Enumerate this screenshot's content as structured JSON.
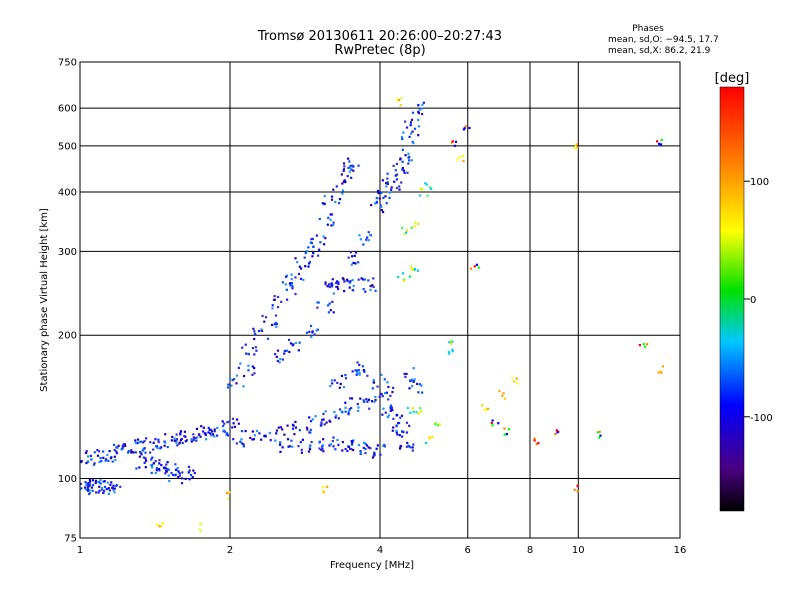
{
  "chart_data": {
    "type": "scatter",
    "title": "Tromsø 20130611 20:26:00–20:27:43",
    "subtitle": "RwPretec (8p)",
    "xlabel": "Frequency [MHz]",
    "ylabel": "Stationary phase Virtual Height [km]",
    "x_scale": "log",
    "y_scale": "log",
    "xlim": [
      1,
      16
    ],
    "ylim": [
      75,
      750
    ],
    "x_ticks": [
      1,
      2,
      4,
      6,
      8,
      10,
      16
    ],
    "y_ticks": [
      75,
      100,
      200,
      300,
      400,
      500,
      600,
      750
    ],
    "grid": true,
    "stats": {
      "title": "Phases",
      "line_o": "mean, sd,O: −94.5, 17.7",
      "line_x": "mean, sd,X:  86.2, 21.9"
    },
    "colorbar": {
      "label": "[deg]",
      "range": [
        -180,
        180
      ],
      "ticks": [
        100,
        0,
        -100
      ]
    },
    "series": [
      {
        "points": [
          [
            1.02,
            97
          ],
          [
            1.04,
            96
          ],
          [
            1.06,
            97
          ],
          [
            1.08,
            96
          ],
          [
            1.1,
            96
          ],
          [
            1.13,
            97
          ],
          [
            1.16,
            96
          ],
          [
            1.03,
            110
          ],
          [
            1.06,
            111
          ],
          [
            1.1,
            111
          ],
          [
            1.14,
            112
          ],
          [
            1.18,
            114
          ],
          [
            1.22,
            115
          ],
          [
            1.28,
            116
          ],
          [
            1.34,
            117
          ],
          [
            1.4,
            118
          ],
          [
            1.46,
            119
          ],
          [
            1.52,
            120
          ],
          [
            1.58,
            121
          ],
          [
            1.64,
            122
          ],
          [
            1.7,
            124
          ],
          [
            1.76,
            125
          ],
          [
            1.84,
            126
          ],
          [
            1.92,
            128
          ],
          [
            2.0,
            130
          ],
          [
            1.35,
            108
          ],
          [
            1.4,
            107
          ],
          [
            1.45,
            106
          ],
          [
            1.5,
            104
          ],
          [
            1.55,
            102
          ],
          [
            1.6,
            101
          ],
          [
            1.65,
            103
          ],
          [
            2.05,
            120
          ],
          [
            2.2,
            122
          ],
          [
            2.4,
            124
          ],
          [
            2.6,
            126
          ],
          [
            2.8,
            128
          ],
          [
            3.0,
            132
          ],
          [
            3.2,
            136
          ],
          [
            3.4,
            140
          ],
          [
            3.6,
            143
          ],
          [
            3.8,
            145
          ],
          [
            2.6,
            117
          ],
          [
            2.8,
            117
          ],
          [
            3.0,
            118
          ],
          [
            3.2,
            118
          ],
          [
            3.4,
            117
          ],
          [
            3.6,
            116
          ],
          [
            3.8,
            115
          ],
          [
            3.95,
            114
          ],
          [
            2.05,
            160
          ],
          [
            2.15,
            170
          ],
          [
            2.2,
            185
          ],
          [
            2.3,
            200
          ],
          [
            2.4,
            215
          ],
          [
            2.5,
            235
          ],
          [
            2.6,
            250
          ],
          [
            2.7,
            265
          ],
          [
            2.8,
            285
          ],
          [
            2.9,
            300
          ],
          [
            3.0,
            320
          ],
          [
            3.1,
            350
          ],
          [
            3.2,
            380
          ],
          [
            3.3,
            410
          ],
          [
            3.4,
            440
          ],
          [
            3.5,
            460
          ],
          [
            2.5,
            180
          ],
          [
            2.7,
            190
          ],
          [
            2.9,
            205
          ],
          [
            3.1,
            230
          ],
          [
            3.3,
            260
          ],
          [
            3.5,
            290
          ],
          [
            3.7,
            320
          ],
          [
            3.2,
            250
          ],
          [
            3.4,
            255
          ],
          [
            3.6,
            255
          ],
          [
            3.8,
            255
          ],
          [
            3.3,
            160
          ],
          [
            3.5,
            165
          ],
          [
            3.7,
            170
          ],
          [
            4.0,
            370
          ],
          [
            4.1,
            390
          ],
          [
            4.2,
            410
          ],
          [
            4.3,
            430
          ],
          [
            4.4,
            450
          ],
          [
            4.5,
            480
          ],
          [
            4.6,
            520
          ],
          [
            4.65,
            560
          ],
          [
            4.7,
            600
          ],
          [
            4.0,
            160
          ],
          [
            4.1,
            150
          ],
          [
            4.2,
            140
          ],
          [
            4.3,
            135
          ],
          [
            4.4,
            128
          ],
          [
            4.5,
            122
          ],
          [
            4.55,
            118
          ],
          [
            4.7,
            155
          ],
          [
            4.6,
            165
          ]
        ]
      },
      {
        "points": [
          [
            4.4,
            265
          ],
          [
            4.6,
            270
          ],
          [
            4.7,
            275
          ],
          [
            4.5,
            330
          ],
          [
            4.7,
            340
          ],
          [
            4.9,
            400
          ],
          [
            5.0,
            410
          ],
          [
            4.6,
            140
          ],
          [
            4.8,
            138
          ],
          [
            5.2,
            130
          ],
          [
            5.5,
            185
          ],
          [
            5.6,
            195
          ],
          [
            5.0,
            120
          ]
        ]
      },
      {
        "points": [
          [
            2.0,
            92
          ],
          [
            3.1,
            95
          ],
          [
            1.45,
            80
          ],
          [
            1.75,
            79
          ],
          [
            6.5,
            140
          ],
          [
            7.0,
            150
          ],
          [
            7.5,
            160
          ],
          [
            5.8,
            470
          ],
          [
            14.6,
            170
          ],
          [
            10.0,
            500
          ],
          [
            4.4,
            620
          ]
        ]
      },
      {
        "points": [
          [
            6.2,
            280
          ],
          [
            6.8,
            130
          ],
          [
            7.2,
            125
          ],
          [
            8.2,
            120
          ],
          [
            9.0,
            125
          ],
          [
            10.0,
            95
          ],
          [
            11.0,
            124
          ],
          [
            13.5,
            190
          ],
          [
            14.5,
            510
          ],
          [
            5.6,
            505
          ],
          [
            6.0,
            545
          ]
        ]
      }
    ]
  }
}
